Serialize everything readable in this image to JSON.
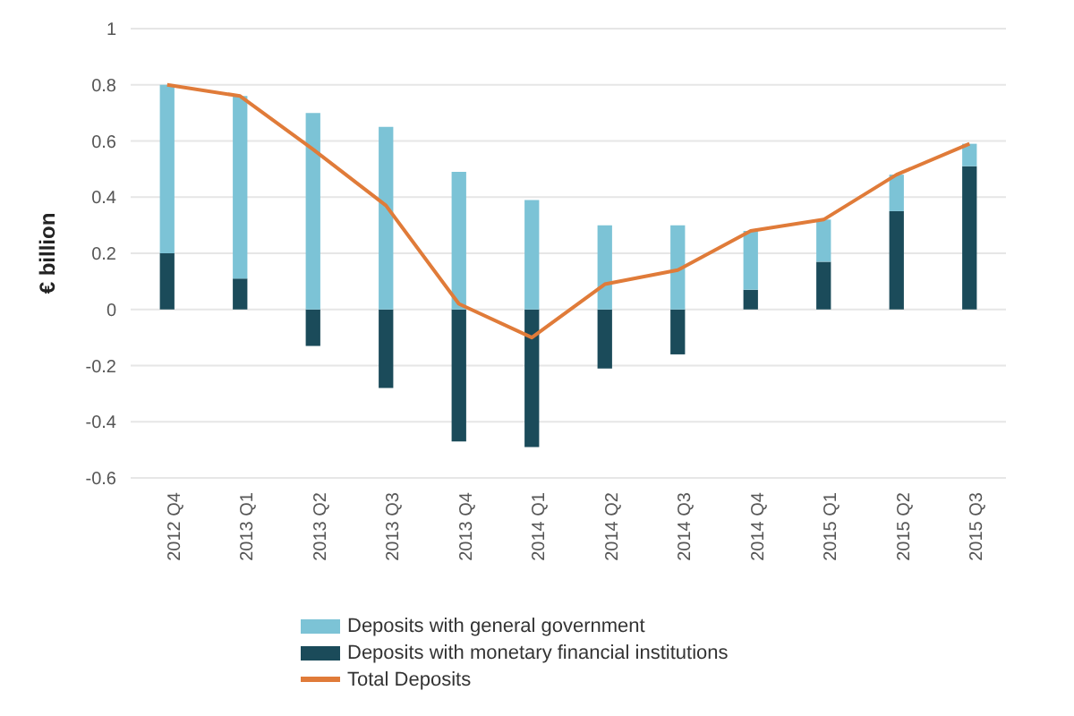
{
  "chart_data": {
    "type": "bar",
    "stacked": true,
    "ylabel": "€ billion",
    "categories": [
      "2012 Q4",
      "2013 Q1",
      "2013 Q2",
      "2013 Q3",
      "2013 Q4",
      "2014 Q1",
      "2014 Q2",
      "2014 Q3",
      "2014 Q4",
      "2015 Q1",
      "2015 Q2",
      "2015 Q3"
    ],
    "series": [
      {
        "name": "Deposits with monetary financial institutions",
        "color": "#1b4b5a",
        "values": [
          0.2,
          0.11,
          -0.13,
          -0.28,
          -0.47,
          -0.49,
          -0.21,
          -0.16,
          0.07,
          0.17,
          0.35,
          0.51
        ]
      },
      {
        "name": "Deposits with general government",
        "color": "#7cc3d6",
        "values": [
          0.6,
          0.65,
          0.7,
          0.65,
          0.49,
          0.39,
          0.3,
          0.3,
          0.21,
          0.15,
          0.13,
          0.08
        ]
      },
      {
        "name": "Total Deposits",
        "type": "line",
        "color": "#e07b39",
        "values": [
          0.8,
          0.76,
          0.57,
          0.37,
          0.02,
          -0.1,
          0.09,
          0.14,
          0.28,
          0.32,
          0.48,
          0.59
        ]
      }
    ],
    "ylim": [
      -0.6,
      1
    ],
    "yticks": [
      -0.6,
      -0.4,
      -0.2,
      0,
      0.2,
      0.4,
      0.6,
      0.8,
      1
    ],
    "grid": "y",
    "legend": "bottom",
    "marker": "none"
  }
}
